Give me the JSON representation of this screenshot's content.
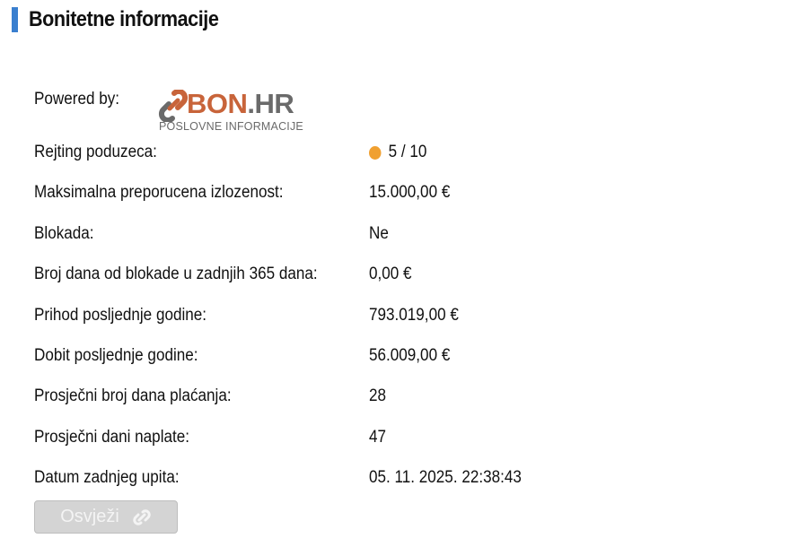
{
  "header": {
    "title": "Bonitetne informacije",
    "accent_color": "#3a7fcf"
  },
  "powered_by": {
    "label": "Powered by:",
    "logo_text": "BON.HR",
    "logo_subtitle": "POSLOVNE INFORMACIJE"
  },
  "rows": [
    {
      "label": "Rejting poduzeca:",
      "value": "5 / 10",
      "indicator_color": "#f0a030"
    },
    {
      "label": "Maksimalna preporucena izlozenost:",
      "value": "15.000,00 €"
    },
    {
      "label": "Blokada:",
      "value": "Ne"
    },
    {
      "label": "Broj dana od blokade u zadnjih 365 dana:",
      "value": "0,00 €"
    },
    {
      "label": "Prihod posljednje godine:",
      "value": "793.019,00 €"
    },
    {
      "label": "Dobit posljednje godine:",
      "value": "56.009,00 €"
    },
    {
      "label": "Prosječni broj dana plaćanja:",
      "value": "28"
    },
    {
      "label": "Prosječni dani naplate:",
      "value": "47"
    },
    {
      "label": "Datum zadnjeg upita:",
      "value": "05. 11. 2025. 22:38:43"
    }
  ],
  "refresh_button": {
    "label": "Osvježi",
    "icon": "link-icon",
    "disabled": true
  }
}
